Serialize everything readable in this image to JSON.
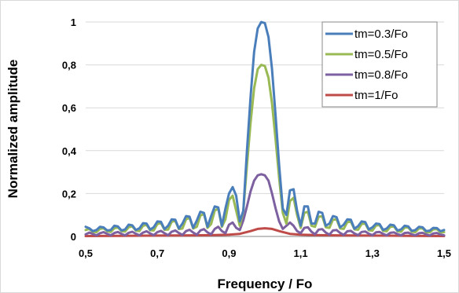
{
  "chart_data": {
    "type": "line",
    "title": "",
    "xlabel": "Frequency / Fo",
    "ylabel": "Normalized amplitude",
    "xlim": [
      0.5,
      1.5
    ],
    "ylim": [
      0,
      1
    ],
    "x_ticks": [
      "0,5",
      "0,7",
      "0,9",
      "1,1",
      "1,3",
      "1,5"
    ],
    "x_tick_values": [
      0.5,
      0.7,
      0.9,
      1.1,
      1.3,
      1.5
    ],
    "y_ticks": [
      "0",
      "0,2",
      "0,4",
      "0,6",
      "0,8",
      "1"
    ],
    "y_tick_values": [
      0,
      0.2,
      0.4,
      0.6,
      0.8,
      1
    ],
    "grid": "horizontal",
    "legend_position": "top-right",
    "series": [
      {
        "name": "tm=0.3/Fo",
        "color": "#4a7ebb",
        "x": [
          0.5,
          0.51,
          0.52,
          0.53,
          0.54,
          0.55,
          0.56,
          0.57,
          0.58,
          0.59,
          0.6,
          0.61,
          0.62,
          0.63,
          0.64,
          0.65,
          0.66,
          0.67,
          0.68,
          0.69,
          0.7,
          0.71,
          0.72,
          0.73,
          0.74,
          0.75,
          0.76,
          0.77,
          0.78,
          0.79,
          0.8,
          0.81,
          0.82,
          0.83,
          0.84,
          0.85,
          0.86,
          0.87,
          0.88,
          0.89,
          0.9,
          0.91,
          0.92,
          0.93,
          0.94,
          0.95,
          0.96,
          0.97,
          0.98,
          0.99,
          1.0,
          1.01,
          1.02,
          1.03,
          1.04,
          1.05,
          1.06,
          1.07,
          1.08,
          1.09,
          1.1,
          1.11,
          1.12,
          1.13,
          1.14,
          1.15,
          1.16,
          1.17,
          1.18,
          1.19,
          1.2,
          1.21,
          1.22,
          1.23,
          1.24,
          1.25,
          1.26,
          1.27,
          1.28,
          1.29,
          1.3,
          1.31,
          1.32,
          1.33,
          1.34,
          1.35,
          1.36,
          1.37,
          1.38,
          1.39,
          1.4,
          1.41,
          1.42,
          1.43,
          1.44,
          1.45,
          1.46,
          1.47,
          1.48,
          1.49,
          1.5
        ],
        "values": [
          0.045,
          0.038,
          0.025,
          0.03,
          0.045,
          0.042,
          0.028,
          0.03,
          0.05,
          0.047,
          0.028,
          0.033,
          0.055,
          0.052,
          0.03,
          0.038,
          0.062,
          0.06,
          0.032,
          0.043,
          0.07,
          0.068,
          0.034,
          0.05,
          0.08,
          0.078,
          0.037,
          0.06,
          0.095,
          0.092,
          0.04,
          0.074,
          0.115,
          0.11,
          0.045,
          0.095,
          0.14,
          0.135,
          0.05,
          0.13,
          0.2,
          0.23,
          0.19,
          0.07,
          0.12,
          0.4,
          0.65,
          0.86,
          0.97,
          1.0,
          0.995,
          0.93,
          0.78,
          0.56,
          0.33,
          0.13,
          0.1,
          0.215,
          0.22,
          0.12,
          0.05,
          0.14,
          0.14,
          0.06,
          0.06,
          0.115,
          0.11,
          0.05,
          0.06,
          0.095,
          0.09,
          0.042,
          0.055,
          0.08,
          0.078,
          0.036,
          0.048,
          0.07,
          0.067,
          0.033,
          0.042,
          0.06,
          0.058,
          0.03,
          0.037,
          0.055,
          0.052,
          0.028,
          0.033,
          0.05,
          0.047,
          0.026,
          0.03,
          0.045,
          0.043,
          0.025,
          0.027,
          0.04,
          0.039,
          0.024,
          0.03
        ]
      },
      {
        "name": "tm=0.5/Fo",
        "color": "#98b954",
        "x": [
          0.5,
          0.51,
          0.52,
          0.53,
          0.54,
          0.55,
          0.56,
          0.57,
          0.58,
          0.59,
          0.6,
          0.61,
          0.62,
          0.63,
          0.64,
          0.65,
          0.66,
          0.67,
          0.68,
          0.69,
          0.7,
          0.71,
          0.72,
          0.73,
          0.74,
          0.75,
          0.76,
          0.77,
          0.78,
          0.79,
          0.8,
          0.81,
          0.82,
          0.83,
          0.84,
          0.85,
          0.86,
          0.87,
          0.88,
          0.89,
          0.9,
          0.91,
          0.92,
          0.93,
          0.94,
          0.95,
          0.96,
          0.97,
          0.98,
          0.99,
          1.0,
          1.01,
          1.02,
          1.03,
          1.04,
          1.05,
          1.06,
          1.07,
          1.08,
          1.09,
          1.1,
          1.11,
          1.12,
          1.13,
          1.14,
          1.15,
          1.16,
          1.17,
          1.18,
          1.19,
          1.2,
          1.21,
          1.22,
          1.23,
          1.24,
          1.25,
          1.26,
          1.27,
          1.28,
          1.29,
          1.3,
          1.31,
          1.32,
          1.33,
          1.34,
          1.35,
          1.36,
          1.37,
          1.38,
          1.39,
          1.4,
          1.41,
          1.42,
          1.43,
          1.44,
          1.45,
          1.46,
          1.47,
          1.48,
          1.49,
          1.5
        ],
        "values": [
          0.03,
          0.035,
          0.022,
          0.02,
          0.035,
          0.038,
          0.024,
          0.021,
          0.038,
          0.042,
          0.025,
          0.023,
          0.043,
          0.047,
          0.027,
          0.025,
          0.05,
          0.054,
          0.029,
          0.028,
          0.058,
          0.062,
          0.031,
          0.032,
          0.068,
          0.073,
          0.034,
          0.037,
          0.08,
          0.087,
          0.037,
          0.045,
          0.097,
          0.105,
          0.04,
          0.058,
          0.12,
          0.13,
          0.045,
          0.08,
          0.17,
          0.19,
          0.12,
          0.05,
          0.12,
          0.33,
          0.53,
          0.69,
          0.78,
          0.8,
          0.795,
          0.74,
          0.62,
          0.45,
          0.27,
          0.11,
          0.06,
          0.165,
          0.18,
          0.1,
          0.04,
          0.11,
          0.115,
          0.05,
          0.045,
          0.092,
          0.094,
          0.043,
          0.04,
          0.078,
          0.08,
          0.037,
          0.035,
          0.067,
          0.069,
          0.033,
          0.031,
          0.058,
          0.06,
          0.029,
          0.027,
          0.051,
          0.053,
          0.026,
          0.024,
          0.045,
          0.047,
          0.024,
          0.022,
          0.041,
          0.042,
          0.022,
          0.02,
          0.037,
          0.038,
          0.02,
          0.019,
          0.033,
          0.034,
          0.019,
          0.02
        ]
      },
      {
        "name": "tm=0.8/Fo",
        "color": "#7d60a0",
        "x": [
          0.5,
          0.51,
          0.52,
          0.53,
          0.54,
          0.55,
          0.56,
          0.57,
          0.58,
          0.59,
          0.6,
          0.61,
          0.62,
          0.63,
          0.64,
          0.65,
          0.66,
          0.67,
          0.68,
          0.69,
          0.7,
          0.71,
          0.72,
          0.73,
          0.74,
          0.75,
          0.76,
          0.77,
          0.78,
          0.79,
          0.8,
          0.81,
          0.82,
          0.83,
          0.84,
          0.85,
          0.86,
          0.87,
          0.88,
          0.89,
          0.9,
          0.91,
          0.92,
          0.93,
          0.94,
          0.95,
          0.96,
          0.97,
          0.98,
          0.99,
          1.0,
          1.01,
          1.02,
          1.03,
          1.04,
          1.05,
          1.06,
          1.07,
          1.08,
          1.09,
          1.1,
          1.11,
          1.12,
          1.13,
          1.14,
          1.15,
          1.16,
          1.17,
          1.18,
          1.19,
          1.2,
          1.21,
          1.22,
          1.23,
          1.24,
          1.25,
          1.26,
          1.27,
          1.28,
          1.29,
          1.3,
          1.31,
          1.32,
          1.33,
          1.34,
          1.35,
          1.36,
          1.37,
          1.38,
          1.39,
          1.4,
          1.41,
          1.42,
          1.43,
          1.44,
          1.45,
          1.46,
          1.47,
          1.48,
          1.49,
          1.5
        ],
        "values": [
          0.01,
          0.018,
          0.012,
          0.005,
          0.015,
          0.02,
          0.012,
          0.005,
          0.016,
          0.021,
          0.012,
          0.005,
          0.017,
          0.022,
          0.013,
          0.005,
          0.018,
          0.024,
          0.014,
          0.006,
          0.02,
          0.026,
          0.015,
          0.006,
          0.022,
          0.028,
          0.016,
          0.007,
          0.025,
          0.031,
          0.018,
          0.008,
          0.028,
          0.034,
          0.019,
          0.01,
          0.035,
          0.045,
          0.025,
          0.015,
          0.055,
          0.065,
          0.04,
          0.03,
          0.075,
          0.14,
          0.21,
          0.26,
          0.285,
          0.29,
          0.285,
          0.26,
          0.2,
          0.13,
          0.07,
          0.035,
          0.05,
          0.065,
          0.05,
          0.025,
          0.015,
          0.04,
          0.043,
          0.022,
          0.01,
          0.032,
          0.034,
          0.018,
          0.008,
          0.028,
          0.03,
          0.016,
          0.007,
          0.024,
          0.026,
          0.014,
          0.006,
          0.021,
          0.023,
          0.013,
          0.006,
          0.019,
          0.021,
          0.012,
          0.005,
          0.017,
          0.019,
          0.011,
          0.005,
          0.016,
          0.018,
          0.01,
          0.005,
          0.015,
          0.017,
          0.01,
          0.004,
          0.014,
          0.016,
          0.009,
          0.005
        ]
      },
      {
        "name": "tm=1/Fo",
        "color": "#be4b48",
        "x": [
          0.5,
          0.6,
          0.7,
          0.8,
          0.85,
          0.9,
          0.93,
          0.96,
          0.98,
          1.0,
          1.02,
          1.04,
          1.07,
          1.1,
          1.15,
          1.2,
          1.3,
          1.4,
          1.5
        ],
        "values": [
          0.002,
          0.003,
          0.004,
          0.005,
          0.006,
          0.008,
          0.012,
          0.025,
          0.035,
          0.038,
          0.035,
          0.025,
          0.012,
          0.008,
          0.006,
          0.005,
          0.004,
          0.003,
          0.002
        ]
      }
    ]
  }
}
